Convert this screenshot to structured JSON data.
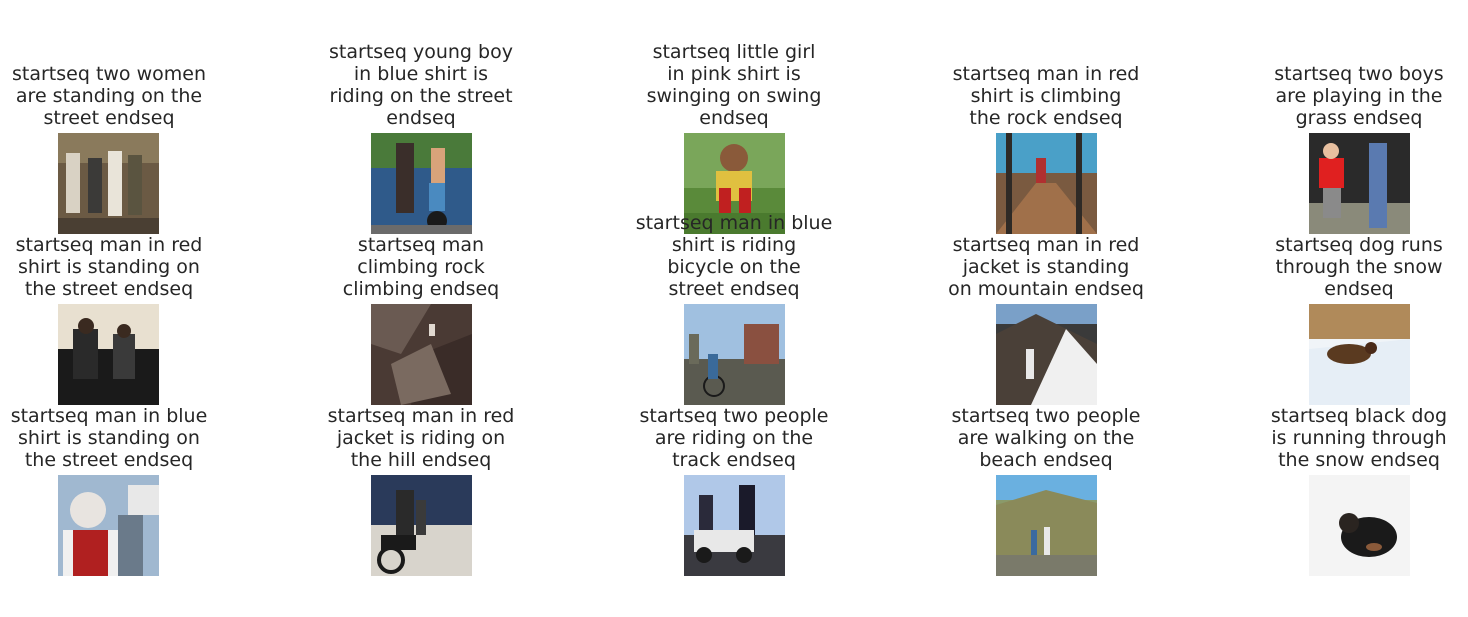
{
  "captions": [
    [
      "startseq two women\nare standing on the\nstreet endseq",
      "startseq young boy\nin blue shirt is\nriding on the street\nendseq",
      "startseq little girl\nin pink shirt is\nswinging on swing\nendseq",
      "startseq man in red\nshirt is climbing\nthe rock endseq",
      "startseq two boys\nare playing in the\ngrass endseq"
    ],
    [
      "startseq man in red\nshirt is standing on\nthe street endseq",
      "startseq man\nclimbing rock\nclimbing endseq",
      "startseq man in blue\nshirt is riding\nbicycle on the\nstreet endseq",
      "startseq man in red\njacket is standing\non mountain endseq",
      "startseq dog runs\nthrough the snow\nendseq"
    ],
    [
      "startseq man in blue\nshirt is standing on\nthe street endseq",
      "startseq man in red\njacket is riding on\nthe hill endseq",
      "startseq two people\nare riding on the\ntrack endseq",
      "startseq two people\nare walking on the\nbeach endseq",
      "startseq black dog\nis running through\nthe snow endseq"
    ]
  ],
  "images": [
    [
      "group-photo",
      "unicycle",
      "swing",
      "bridge",
      "kids-play"
    ],
    [
      "street-crowd",
      "rock-wall",
      "bicycle-street",
      "mountain",
      "dog-snow"
    ],
    [
      "old-woman",
      "motorcycle",
      "police-bike",
      "hillside",
      "black-dog"
    ]
  ]
}
